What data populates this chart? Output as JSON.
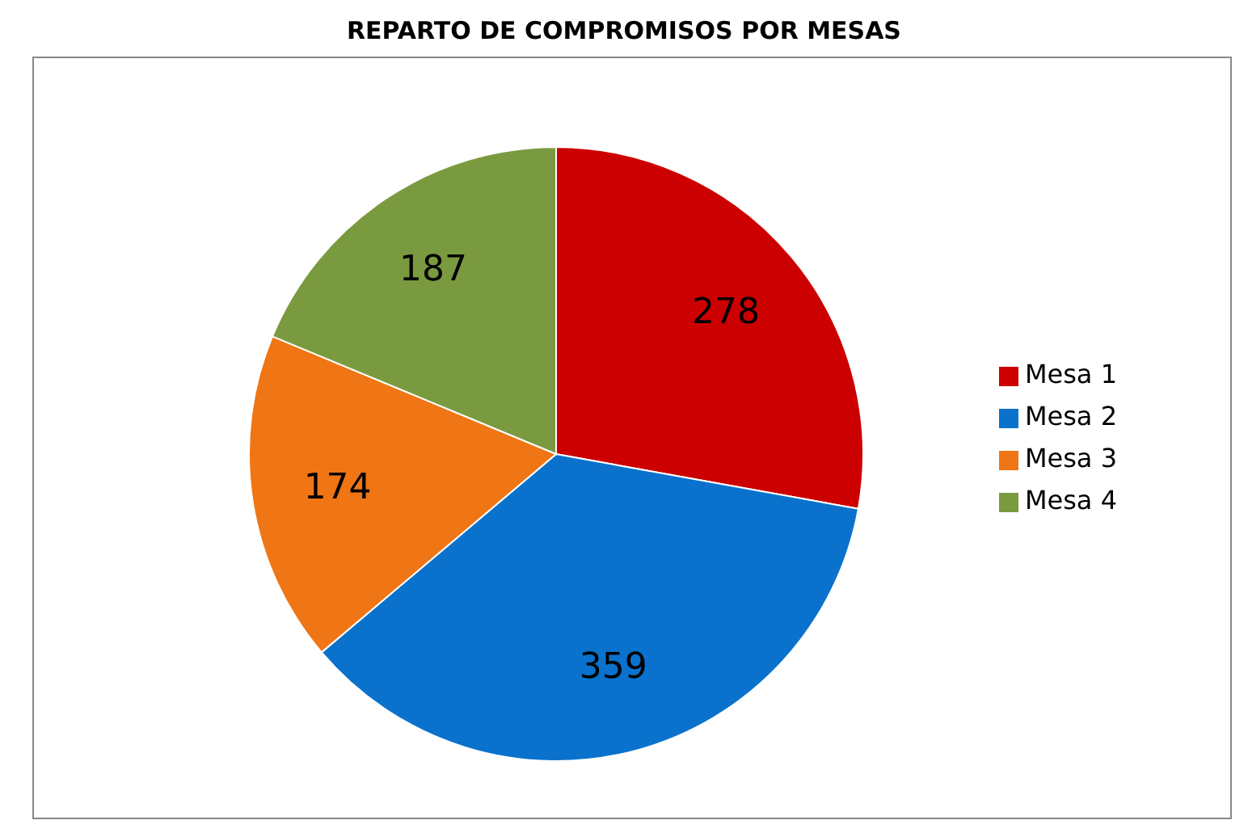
{
  "chart_data": {
    "type": "pie",
    "title": "REPARTO DE COMPROMISOS POR MESAS",
    "categories": [
      "Mesa 1",
      "Mesa 2",
      "Mesa 3",
      "Mesa 4"
    ],
    "values": [
      278,
      359,
      174,
      187
    ],
    "colors": [
      "#cc0000",
      "#0a72cc",
      "#f07514",
      "#7a9a40"
    ],
    "data_labels": true,
    "legend": "right"
  }
}
